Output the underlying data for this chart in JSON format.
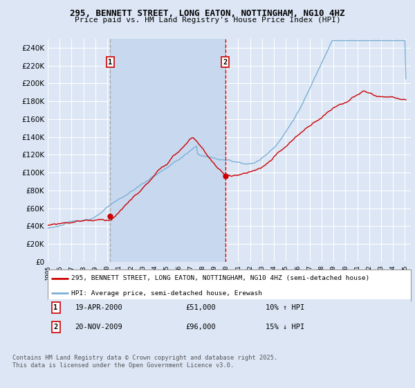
{
  "title_line1": "295, BENNETT STREET, LONG EATON, NOTTINGHAM, NG10 4HZ",
  "title_line2": "Price paid vs. HM Land Registry's House Price Index (HPI)",
  "background_color": "#dce6f5",
  "plot_bg_color": "#dce6f5",
  "grid_color": "#ffffff",
  "red_line_color": "#cc0000",
  "blue_line_color": "#7ab0d4",
  "shade_color": "#c8d8ee",
  "ylim": [
    0,
    250000
  ],
  "ytick_step": 20000,
  "xlim_left": 1995.0,
  "xlim_right": 2025.5,
  "marker1_year": 2000.29,
  "marker2_year": 2009.9,
  "marker1_price": 51000,
  "marker2_price": 96000,
  "legend_red": "295, BENNETT STREET, LONG EATON, NOTTINGHAM, NG10 4HZ (semi-detached house)",
  "legend_blue": "HPI: Average price, semi-detached house, Erewash",
  "ann1_date": "19-APR-2000",
  "ann1_price": "£51,000",
  "ann1_hpi": "10% ↑ HPI",
  "ann2_date": "20-NOV-2009",
  "ann2_price": "£96,000",
  "ann2_hpi": "15% ↓ HPI",
  "footer": "Contains HM Land Registry data © Crown copyright and database right 2025.\nThis data is licensed under the Open Government Licence v3.0."
}
